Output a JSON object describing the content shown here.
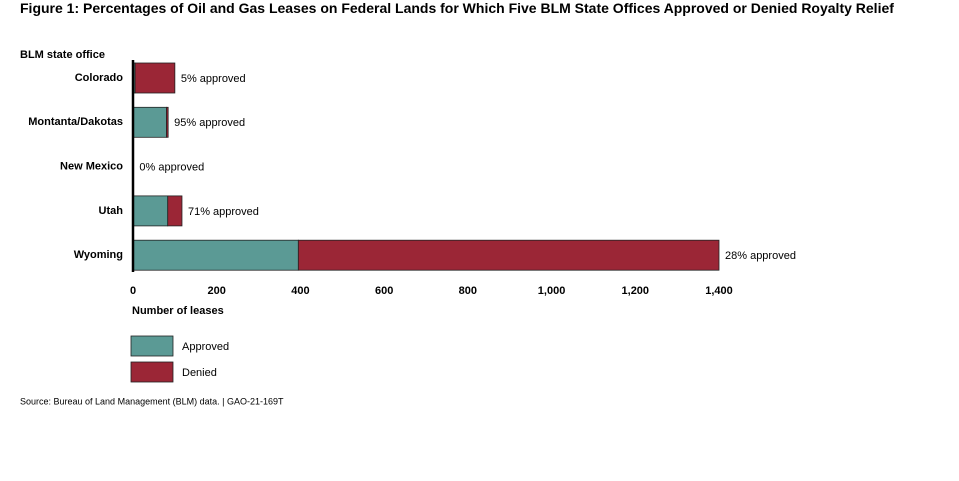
{
  "chart_data": {
    "type": "stacked-bar-horizontal",
    "title": "Figure 1: Percentages of Oil and Gas Leases on Federal Lands for Which Five BLM State Offices Approved or Denied Royalty Relief",
    "y_label": "BLM state office",
    "x_label": "Number of leases",
    "categories": [
      "Colorado",
      "Montanta/Dakotas",
      "New Mexico",
      "Utah",
      "Wyoming"
    ],
    "series": [
      {
        "name": "Approved",
        "color": "#5b9a95",
        "values": [
          5,
          80,
          0,
          83,
          395
        ]
      },
      {
        "name": "Denied",
        "color": "#9b2636",
        "values": [
          95,
          4,
          1,
          34,
          1005
        ]
      }
    ],
    "value_labels": [
      "5% approved",
      "95% approved",
      "0% approved",
      "71% approved",
      "28% approved"
    ],
    "xlim": [
      0,
      1400
    ],
    "xticks": [
      0,
      200,
      400,
      600,
      800,
      {
        "value": 1000,
        "label": "1,000"
      },
      {
        "value": 1200,
        "label": "1,200"
      },
      {
        "value": 1400,
        "label": "1,400"
      }
    ],
    "source": "Source: Bureau of Land Management (BLM) data.  |  GAO-21-169T"
  }
}
